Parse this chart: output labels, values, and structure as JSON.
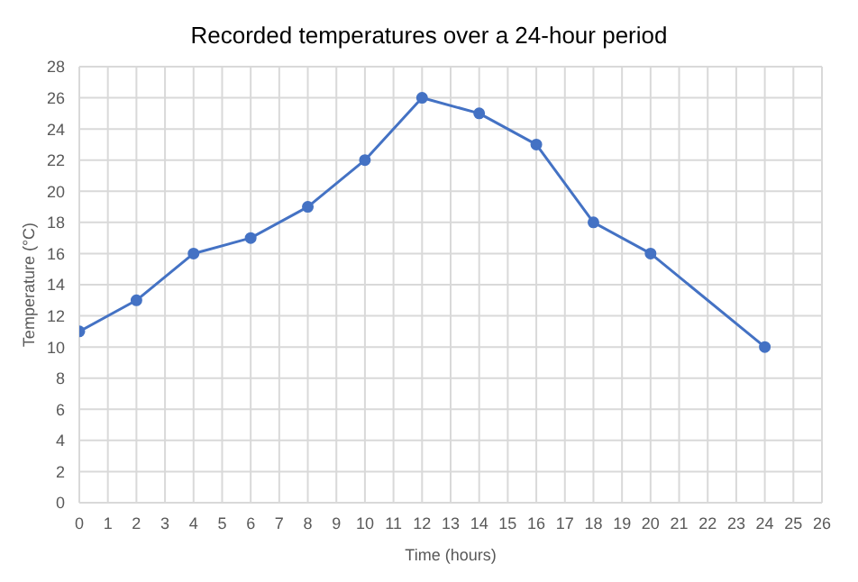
{
  "chart_data": {
    "type": "line",
    "title": "Recorded temperatures over a 24-hour period",
    "xlabel": "Time (hours)",
    "ylabel": "Temperature (°C)",
    "x": [
      0,
      2,
      4,
      6,
      8,
      10,
      12,
      14,
      16,
      18,
      20,
      24
    ],
    "series": [
      {
        "color": "#4472c4",
        "values": [
          11,
          13,
          16,
          17,
          19,
          22,
          26,
          25,
          23,
          18,
          16,
          10
        ]
      }
    ],
    "xlim": [
      0,
      26
    ],
    "xticks": [
      0,
      1,
      2,
      3,
      4,
      5,
      6,
      7,
      8,
      9,
      10,
      11,
      12,
      13,
      14,
      15,
      16,
      17,
      18,
      19,
      20,
      21,
      22,
      23,
      24,
      25,
      26
    ],
    "ylim": [
      0,
      28
    ],
    "yticks": [
      0,
      2,
      4,
      6,
      8,
      10,
      12,
      14,
      16,
      18,
      20,
      22,
      24,
      26,
      28
    ],
    "grid": true,
    "marker": "circle",
    "line_style": "solid"
  }
}
